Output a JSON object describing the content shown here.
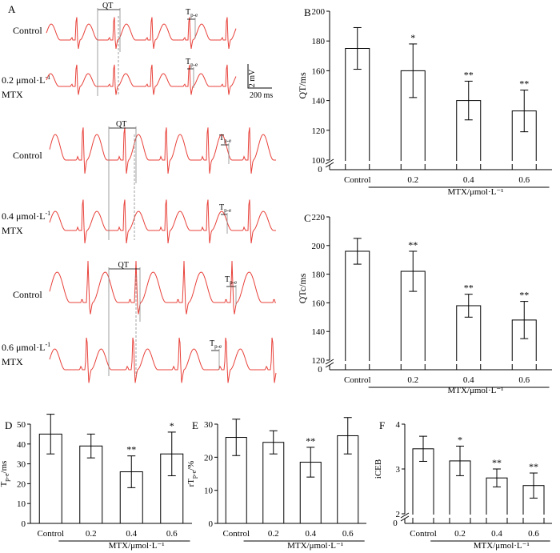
{
  "ecg": {
    "panel_label": "A",
    "qt_label": "QT",
    "tpe_label": "T",
    "tpe_sub": "p-e",
    "scale_voltage": "2 mV",
    "scale_time": "200 ms",
    "groups": [
      {
        "top_label": "Control",
        "bottom_label": [
          "0.2 μmol·L",
          "-1",
          "MTX"
        ]
      },
      {
        "top_label": "Control",
        "bottom_label": [
          "0.4 μmol·L",
          "-1",
          "MTX"
        ]
      },
      {
        "top_label": "Control",
        "bottom_label": [
          "0.6 μmol·L",
          "-1",
          "MTX"
        ]
      }
    ],
    "trace_color": "#e8413a"
  },
  "chart_data": [
    {
      "panel": "B",
      "type": "bar",
      "categories": [
        "Control",
        "0.2",
        "0.4",
        "0.6"
      ],
      "values": [
        175,
        160,
        140,
        133
      ],
      "errors": [
        14,
        18,
        13,
        14
      ],
      "significance": [
        "",
        "*",
        "**",
        "**"
      ],
      "ylabel": "QT/ms",
      "ylim": [
        100,
        200
      ],
      "yticks": [
        100,
        120,
        140,
        160,
        180,
        200
      ],
      "axis_break": true,
      "group_label": "MTX/μmol·L⁻¹"
    },
    {
      "panel": "C",
      "type": "bar",
      "categories": [
        "Control",
        "0.2",
        "0.4",
        "0.6"
      ],
      "values": [
        196,
        182,
        158,
        148
      ],
      "errors": [
        9,
        14,
        8,
        13
      ],
      "significance": [
        "",
        "**",
        "**",
        "**"
      ],
      "ylabel": "QTc/ms",
      "ylim": [
        120,
        220
      ],
      "yticks": [
        120,
        140,
        160,
        180,
        200,
        220
      ],
      "axis_break": true,
      "group_label": "MTX/μmol·L⁻¹"
    },
    {
      "panel": "D",
      "type": "bar",
      "categories": [
        "Control",
        "0.2",
        "0.4",
        "0.6"
      ],
      "values": [
        45,
        39,
        26,
        35
      ],
      "errors": [
        10,
        6,
        8,
        11
      ],
      "significance": [
        "",
        "",
        "**",
        "*"
      ],
      "ylabel": "Tp-e/ms",
      "ylim": [
        0,
        50
      ],
      "yticks": [
        0,
        10,
        20,
        30,
        40,
        50
      ],
      "axis_break": false,
      "group_label": "MTX/μmol·L⁻¹"
    },
    {
      "panel": "E",
      "type": "bar",
      "categories": [
        "Control",
        "0.2",
        "0.4",
        "0.6"
      ],
      "values": [
        26,
        24.5,
        18.5,
        26.5
      ],
      "errors": [
        5.5,
        3.5,
        4.5,
        5.5
      ],
      "significance": [
        "",
        "",
        "**",
        ""
      ],
      "ylabel": "rTp-e/%",
      "ylim": [
        0,
        30
      ],
      "yticks": [
        0,
        10,
        20,
        30
      ],
      "axis_break": false,
      "group_label": "MTX/μmol·L⁻¹"
    },
    {
      "panel": "F",
      "type": "bar",
      "categories": [
        "Control",
        "0.2",
        "0.4",
        "0.6"
      ],
      "values": [
        3.45,
        3.18,
        2.8,
        2.63
      ],
      "errors": [
        0.28,
        0.33,
        0.2,
        0.28
      ],
      "significance": [
        "",
        "*",
        "**",
        "**"
      ],
      "ylabel": "iCEB",
      "ylim": [
        2,
        4
      ],
      "yticks": [
        2,
        3,
        4
      ],
      "axis_break": true,
      "group_label": "MTX/μmol·L⁻¹"
    }
  ]
}
